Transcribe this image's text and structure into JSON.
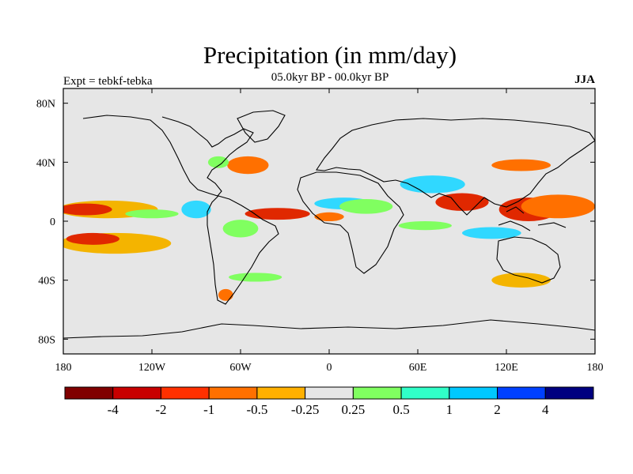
{
  "title": "Precipitation (in mm/day)",
  "subtitle": "05.0kyr BP - 00.0kyr BP",
  "expt_label": "Expt = tebkf-tebka",
  "season": "JJA",
  "map": {
    "projection": "cylindrical-equidistant",
    "lon_range": [
      -180,
      180
    ],
    "lat_range": [
      -90,
      90
    ],
    "lon_ticks": [
      {
        "value": -180,
        "label": "180"
      },
      {
        "value": -120,
        "label": "120W"
      },
      {
        "value": -60,
        "label": "60W"
      },
      {
        "value": 0,
        "label": "0"
      },
      {
        "value": 60,
        "label": "60E"
      },
      {
        "value": 120,
        "label": "120E"
      },
      {
        "value": 180,
        "label": "180"
      }
    ],
    "lat_ticks": [
      {
        "value": 80,
        "label": "80N"
      },
      {
        "value": 40,
        "label": "40N"
      },
      {
        "value": 0,
        "label": "0"
      },
      {
        "value": -40,
        "label": "40S"
      },
      {
        "value": -80,
        "label": "80S"
      }
    ],
    "background_color": "#e6e6e6",
    "anomaly_regions": [
      {
        "name": "central-pacific-north-wet",
        "lon": -150,
        "lat": 8,
        "rx": 34,
        "ry": 6,
        "color": "#f4b400"
      },
      {
        "name": "central-pacific-north-core",
        "lon": -165,
        "lat": 8,
        "rx": 18,
        "ry": 4,
        "color": "#e02800"
      },
      {
        "name": "pacific-itcz-green",
        "lon": -120,
        "lat": 5,
        "rx": 18,
        "ry": 3,
        "color": "#80ff60"
      },
      {
        "name": "south-pacific-band",
        "lon": -145,
        "lat": -15,
        "rx": 38,
        "ry": 7,
        "color": "#f4b400"
      },
      {
        "name": "south-pacific-core",
        "lon": -160,
        "lat": -12,
        "rx": 18,
        "ry": 4,
        "color": "#e02800"
      },
      {
        "name": "central-america-blue",
        "lon": -90,
        "lat": 8,
        "rx": 10,
        "ry": 6,
        "color": "#30d8ff"
      },
      {
        "name": "amazon-green",
        "lon": -60,
        "lat": -5,
        "rx": 12,
        "ry": 6,
        "color": "#80ff60"
      },
      {
        "name": "atlantic-itcz-red",
        "lon": -35,
        "lat": 5,
        "rx": 22,
        "ry": 4,
        "color": "#e02800"
      },
      {
        "name": "west-africa-orange",
        "lon": 0,
        "lat": 3,
        "rx": 10,
        "ry": 3,
        "color": "#ff7000"
      },
      {
        "name": "sahel-blue",
        "lon": 10,
        "lat": 12,
        "rx": 20,
        "ry": 4,
        "color": "#30d8ff"
      },
      {
        "name": "sahel-green",
        "lon": 25,
        "lat": 10,
        "rx": 18,
        "ry": 5,
        "color": "#80ff60"
      },
      {
        "name": "north-atlantic-red",
        "lon": -55,
        "lat": 38,
        "rx": 14,
        "ry": 6,
        "color": "#ff7000"
      },
      {
        "name": "us-east-green",
        "lon": -75,
        "lat": 40,
        "rx": 7,
        "ry": 4,
        "color": "#80ff60"
      },
      {
        "name": "arabian-blue",
        "lon": 70,
        "lat": 25,
        "rx": 22,
        "ry": 6,
        "color": "#30d8ff"
      },
      {
        "name": "bay-of-bengal-red",
        "lon": 90,
        "lat": 13,
        "rx": 18,
        "ry": 6,
        "color": "#e02800"
      },
      {
        "name": "west-pacific-red",
        "lon": 135,
        "lat": 8,
        "rx": 20,
        "ry": 8,
        "color": "#e02800"
      },
      {
        "name": "west-pacific-orange",
        "lon": 155,
        "lat": 10,
        "rx": 25,
        "ry": 8,
        "color": "#ff7000"
      },
      {
        "name": "maritime-continent-blue",
        "lon": 110,
        "lat": -8,
        "rx": 20,
        "ry": 4,
        "color": "#30d8ff"
      },
      {
        "name": "indian-ocean-green",
        "lon": 65,
        "lat": -3,
        "rx": 18,
        "ry": 3,
        "color": "#80ff60"
      },
      {
        "name": "south-indian-orange",
        "lon": 130,
        "lat": -40,
        "rx": 20,
        "ry": 5,
        "color": "#f4b400"
      },
      {
        "name": "east-asia-red",
        "lon": 130,
        "lat": 38,
        "rx": 20,
        "ry": 4,
        "color": "#ff7000"
      },
      {
        "name": "patagonia-red",
        "lon": -70,
        "lat": -50,
        "rx": 5,
        "ry": 4,
        "color": "#ff7000"
      },
      {
        "name": "southern-ocean-green",
        "lon": -50,
        "lat": -38,
        "rx": 18,
        "ry": 3,
        "color": "#80ff60"
      }
    ]
  },
  "colorbar": {
    "colors": [
      "#800000",
      "#c80000",
      "#ff3000",
      "#ff7000",
      "#ffb000",
      "#e6e6e6",
      "#80ff60",
      "#30ffc8",
      "#00c8ff",
      "#0040ff",
      "#000080"
    ],
    "labels": [
      "-4",
      "-2",
      "-1",
      "-0.5",
      "-0.25",
      "0.25",
      "0.5",
      "1",
      "2",
      "4"
    ]
  }
}
